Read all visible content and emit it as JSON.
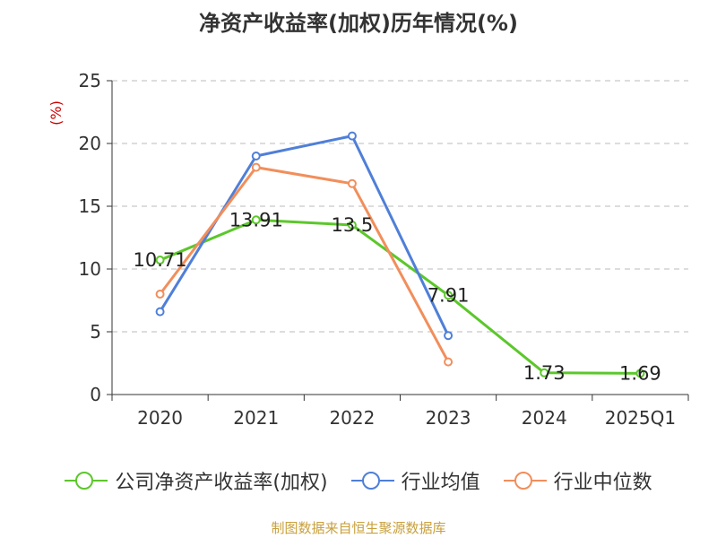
{
  "title": "净资产收益率(加权)历年情况(%)",
  "source": "制图数据来自恒生聚源数据库",
  "chart_data": {
    "type": "line",
    "categories": [
      "2020",
      "2021",
      "2022",
      "2023",
      "2024",
      "2025Q1"
    ],
    "ylabel": "(%)",
    "ylim": [
      0,
      25
    ],
    "yticks": [
      0,
      5,
      10,
      15,
      20,
      25
    ],
    "grid": true,
    "legend_position": "bottom",
    "series": [
      {
        "name": "公司净资产收益率(加权)",
        "color": "#5cc72b",
        "values": [
          10.71,
          13.91,
          13.5,
          7.91,
          1.73,
          1.69
        ],
        "labels": [
          "10.71",
          "13.91",
          "13.5",
          "7.91",
          "1.73",
          "1.69"
        ]
      },
      {
        "name": "行业均值",
        "color": "#4f7fd8",
        "values": [
          6.6,
          19.0,
          20.6,
          4.7,
          null,
          null
        ]
      },
      {
        "name": "行业中位数",
        "color": "#f28e5b",
        "values": [
          8.0,
          18.1,
          16.8,
          2.6,
          null,
          null
        ]
      }
    ]
  }
}
